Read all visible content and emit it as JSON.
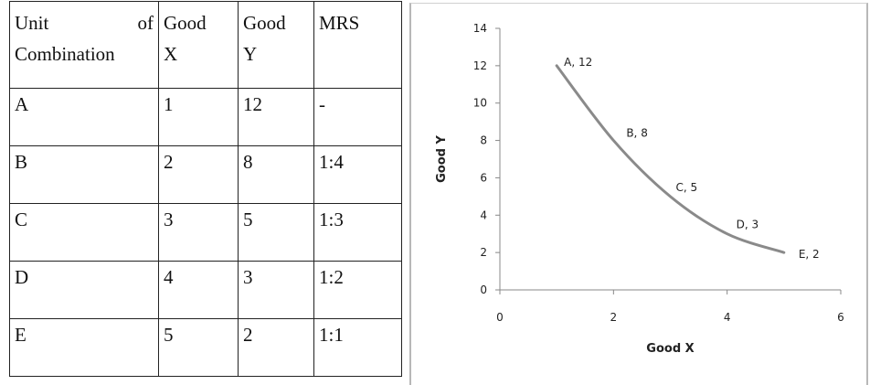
{
  "table": {
    "header": [
      [
        "Unit",
        "of",
        "Combination"
      ],
      [
        "Good",
        "X"
      ],
      [
        "Good",
        "Y"
      ],
      [
        "MRS"
      ]
    ],
    "rows": [
      [
        "A",
        "1",
        "12",
        "-"
      ],
      [
        "B",
        "2",
        "8",
        "1:4"
      ],
      [
        "C",
        "3",
        "5",
        "1:3"
      ],
      [
        "D",
        "4",
        "3",
        "1:2"
      ],
      [
        "E",
        "5",
        "2",
        "1:1"
      ]
    ]
  },
  "chart_data": {
    "type": "line",
    "title": "",
    "xlabel": "Good X",
    "ylabel": "Good Y",
    "xlim": [
      0,
      6
    ],
    "ylim": [
      0,
      14
    ],
    "xticks": [
      0,
      2,
      4,
      6
    ],
    "yticks": [
      0,
      2,
      4,
      6,
      8,
      10,
      12,
      14
    ],
    "grid": false,
    "series": [
      {
        "x": [
          1,
          2,
          3,
          4,
          5
        ],
        "y": [
          12,
          8,
          5,
          3,
          2
        ],
        "point_labels": [
          "A, 12",
          "B, 8",
          "C, 5",
          "D, 3",
          "E, 2"
        ],
        "color": "#8a8a8a"
      }
    ]
  }
}
